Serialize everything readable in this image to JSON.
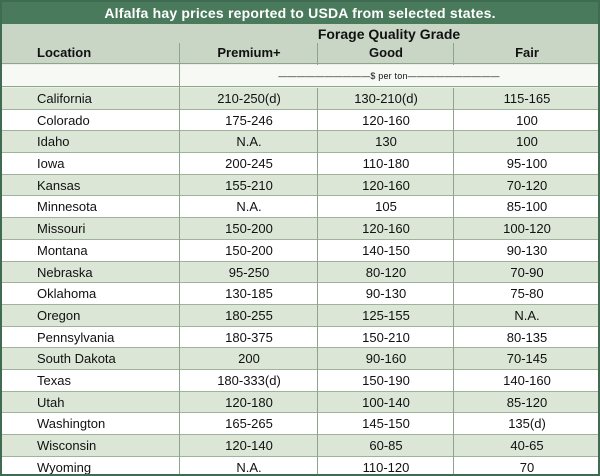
{
  "title": "Alfalfa hay prices reported to USDA from selected states.",
  "header": {
    "group_label": "Forage Quality Grade",
    "location": "Location",
    "premium": "Premium+",
    "good": "Good",
    "fair": "Fair"
  },
  "units": "——————————$ per ton——————————",
  "rows": [
    {
      "location": "California",
      "premium": "210-250(d)",
      "good": "130-210(d)",
      "fair": "115-165"
    },
    {
      "location": "Colorado",
      "premium": "175-246",
      "good": "120-160",
      "fair": "100"
    },
    {
      "location": "Idaho",
      "premium": "N.A.",
      "good": "130",
      "fair": "100"
    },
    {
      "location": "Iowa",
      "premium": "200-245",
      "good": "110-180",
      "fair": "95-100"
    },
    {
      "location": "Kansas",
      "premium": "155-210",
      "good": "120-160",
      "fair": "70-120"
    },
    {
      "location": "Minnesota",
      "premium": "N.A.",
      "good": "105",
      "fair": "85-100"
    },
    {
      "location": "Missouri",
      "premium": "150-200",
      "good": "120-160",
      "fair": "100-120"
    },
    {
      "location": "Montana",
      "premium": "150-200",
      "good": "140-150",
      "fair": "90-130"
    },
    {
      "location": "Nebraska",
      "premium": "95-250",
      "good": "80-120",
      "fair": "70-90"
    },
    {
      "location": "Oklahoma",
      "premium": "130-185",
      "good": "90-130",
      "fair": "75-80"
    },
    {
      "location": "Oregon",
      "premium": "180-255",
      "good": "125-155",
      "fair": "N.A."
    },
    {
      "location": "Pennsylvania",
      "premium": "180-375",
      "good": "150-210",
      "fair": "80-135"
    },
    {
      "location": "South Dakota",
      "premium": "200",
      "good": "90-160",
      "fair": "70-145"
    },
    {
      "location": "Texas",
      "premium": "180-333(d)",
      "good": "150-190",
      "fair": "140-160"
    },
    {
      "location": "Utah",
      "premium": "120-180",
      "good": "100-140",
      "fair": "85-120"
    },
    {
      "location": "Washington",
      "premium": "165-265",
      "good": "145-150",
      "fair": "135(d)"
    },
    {
      "location": "Wisconsin",
      "premium": "120-140",
      "good": "60-85",
      "fair": "40-65"
    },
    {
      "location": "Wyoming",
      "premium": "N.A.",
      "good": "110-120",
      "fair": "70"
    }
  ]
}
